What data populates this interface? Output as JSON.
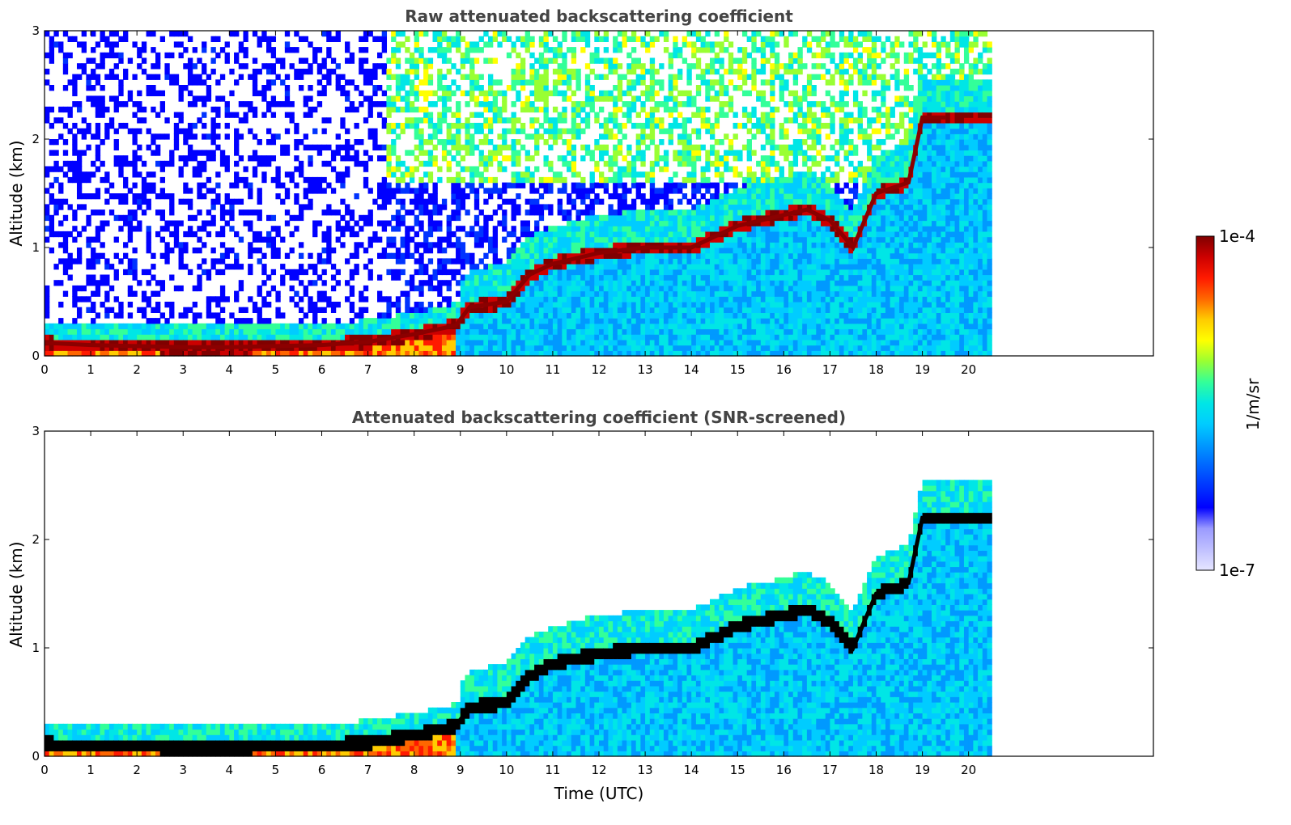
{
  "colorbar": {
    "max_label": "1e-4",
    "min_label": "1e-7",
    "units_label": "1/m/sr",
    "colors": [
      "#e6e6ff",
      "#bfbfff",
      "#9a9aff",
      "#0000ff",
      "#0033ff",
      "#0066ff",
      "#0099ff",
      "#00ccff",
      "#00e6e6",
      "#33ff99",
      "#99ff33",
      "#ffff00",
      "#ffcc00",
      "#ff6600",
      "#ff1a00",
      "#cc0000",
      "#800000"
    ]
  },
  "x_ticks": [
    "0",
    "1",
    "2",
    "3",
    "4",
    "5",
    "6",
    "7",
    "8",
    "9",
    "10",
    "11",
    "12",
    "13",
    "14",
    "15",
    "16",
    "17",
    "18",
    "19",
    "20"
  ],
  "y_ticks": [
    "0",
    "1",
    "2",
    "3"
  ],
  "xlabel": "Time (UTC)",
  "chart_data": [
    {
      "type": "heatmap",
      "title": "Raw attenuated backscattering coefficient",
      "xlabel": "",
      "ylabel": "Altitude (km)",
      "xlim": [
        0,
        24
      ],
      "ylim": [
        0,
        3
      ],
      "data_extent_x": [
        0,
        20.5
      ],
      "color_scale": "log",
      "color_range": [
        1e-07,
        0.0001
      ],
      "color_unit": "1/m/sr",
      "layer_top_km": [
        [
          0,
          0.12
        ],
        [
          1,
          0.1
        ],
        [
          2,
          0.09
        ],
        [
          3,
          0.08
        ],
        [
          4,
          0.08
        ],
        [
          5,
          0.09
        ],
        [
          6,
          0.1
        ],
        [
          7,
          0.13
        ],
        [
          8,
          0.2
        ],
        [
          8.9,
          0.28
        ],
        [
          9.2,
          0.45
        ],
        [
          10,
          0.5
        ],
        [
          10.5,
          0.75
        ],
        [
          11,
          0.85
        ],
        [
          12,
          0.95
        ],
        [
          13,
          1.0
        ],
        [
          14,
          1.0
        ],
        [
          15,
          1.2
        ],
        [
          16,
          1.3
        ],
        [
          16.5,
          1.35
        ],
        [
          17,
          1.25
        ],
        [
          17.5,
          1.0
        ],
        [
          18,
          1.5
        ],
        [
          18.7,
          1.6
        ],
        [
          19,
          2.2
        ],
        [
          19.5,
          2.2
        ]
      ]
    },
    {
      "type": "heatmap",
      "title": "Attenuated backscattering coefficient (SNR-screened)",
      "xlabel": "Time (UTC)",
      "ylabel": "Altitude (km)",
      "xlim": [
        0,
        24
      ],
      "ylim": [
        0,
        3
      ],
      "data_extent_x": [
        0,
        20.5
      ],
      "color_scale": "log",
      "color_range": [
        1e-07,
        0.0001
      ],
      "color_unit": "1/m/sr",
      "layer_top_km": [
        [
          0,
          0.12
        ],
        [
          1,
          0.1
        ],
        [
          2,
          0.09
        ],
        [
          3,
          0.08
        ],
        [
          4,
          0.08
        ],
        [
          5,
          0.09
        ],
        [
          6,
          0.1
        ],
        [
          7,
          0.13
        ],
        [
          8,
          0.2
        ],
        [
          8.9,
          0.28
        ],
        [
          9.2,
          0.45
        ],
        [
          10,
          0.5
        ],
        [
          10.5,
          0.75
        ],
        [
          11,
          0.85
        ],
        [
          12,
          0.95
        ],
        [
          13,
          1.0
        ],
        [
          14,
          1.0
        ],
        [
          15,
          1.2
        ],
        [
          16,
          1.3
        ],
        [
          16.5,
          1.35
        ],
        [
          17,
          1.25
        ],
        [
          17.5,
          1.0
        ],
        [
          18,
          1.5
        ],
        [
          18.7,
          1.6
        ],
        [
          19,
          2.2
        ],
        [
          19.5,
          2.2
        ]
      ]
    }
  ]
}
